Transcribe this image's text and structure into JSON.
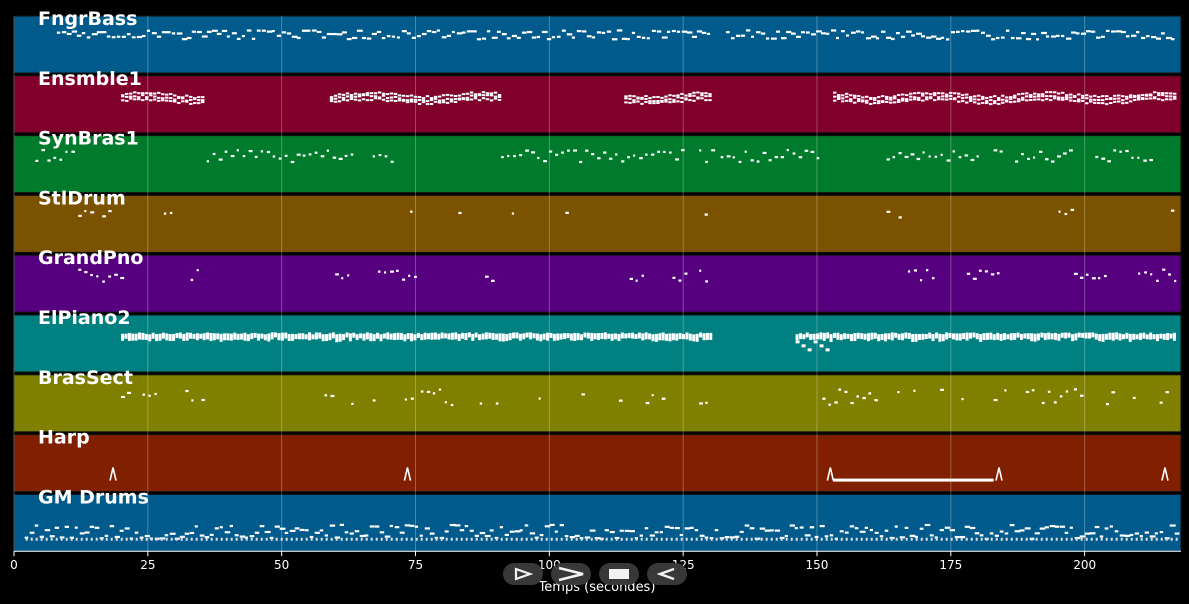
{
  "chart_data": {
    "type": "piano-roll",
    "xlabel": "Temps (secondes)",
    "xlim": [
      0,
      218
    ],
    "xticks": [
      0,
      25,
      50,
      75,
      100,
      125,
      150,
      175,
      200
    ],
    "grid": true,
    "tracks": [
      {
        "name": "FngrBass",
        "color": "#005a8c",
        "segments": [
          [
            8,
            130
          ],
          [
            133,
            217
          ]
        ],
        "style": "dense",
        "rows": 2
      },
      {
        "name": "Ensmble1",
        "color": "#80002b",
        "segments": [
          [
            20,
            35
          ],
          [
            59,
            91
          ],
          [
            114,
            130
          ],
          [
            153,
            217
          ]
        ],
        "style": "chords",
        "rows": 3
      },
      {
        "name": "SynBras1",
        "color": "#007a2b",
        "segments": [
          [
            4,
            11
          ],
          [
            36,
            64
          ],
          [
            67,
            71
          ],
          [
            91,
            125
          ],
          [
            128,
            131
          ],
          [
            132,
            150
          ],
          [
            163,
            180
          ],
          [
            183,
            185
          ],
          [
            187,
            198
          ],
          [
            202,
            213
          ]
        ],
        "style": "scatter",
        "rows": 3
      },
      {
        "name": "StlDrum",
        "color": "#7a5200",
        "segments": [
          [
            12,
            18
          ],
          [
            28,
            31
          ],
          [
            74,
            75
          ],
          [
            83,
            86
          ],
          [
            93,
            94
          ],
          [
            103,
            104
          ],
          [
            129,
            130
          ],
          [
            163,
            166
          ],
          [
            184,
            185
          ],
          [
            194,
            198
          ],
          [
            215,
            217
          ]
        ],
        "style": "sparse",
        "rows": 2
      },
      {
        "name": "GrandPno",
        "color": "#560080",
        "segments": [
          [
            12,
            20
          ],
          [
            33,
            35
          ],
          [
            60,
            63
          ],
          [
            68,
            75
          ],
          [
            88,
            90
          ],
          [
            115,
            118
          ],
          [
            123,
            126
          ],
          [
            128,
            130
          ],
          [
            167,
            172
          ],
          [
            178,
            184
          ],
          [
            198,
            204
          ],
          [
            210,
            217
          ]
        ],
        "style": "scatter",
        "rows": 3
      },
      {
        "name": "ElPiano2",
        "color": "#008080",
        "segments": [
          [
            20,
            130
          ],
          [
            146,
            217
          ]
        ],
        "style": "band",
        "rows": 1
      },
      {
        "name": "BrasSect",
        "color": "#7f7f00",
        "segments": [
          [
            20,
            22
          ],
          [
            24,
            27
          ],
          [
            32,
            34
          ],
          [
            35,
            36
          ],
          [
            58,
            60
          ],
          [
            63,
            64
          ],
          [
            67,
            68
          ],
          [
            73,
            75
          ],
          [
            76,
            82
          ],
          [
            87,
            88
          ],
          [
            90,
            91
          ],
          [
            98,
            99
          ],
          [
            106,
            107
          ],
          [
            113,
            114
          ],
          [
            118,
            120
          ],
          [
            121,
            122
          ],
          [
            128,
            130
          ],
          [
            151,
            154
          ],
          [
            154,
            161
          ],
          [
            165,
            166
          ],
          [
            168,
            169
          ],
          [
            173,
            174
          ],
          [
            177,
            178
          ],
          [
            183,
            184
          ],
          [
            185,
            186
          ],
          [
            189,
            191
          ],
          [
            192,
            197
          ],
          [
            198,
            200
          ],
          [
            204,
            205
          ],
          [
            205,
            206
          ],
          [
            209,
            210
          ],
          [
            214,
            216
          ]
        ],
        "style": "scatter",
        "rows": 4
      },
      {
        "name": "Harp",
        "color": "#802000",
        "segments": [
          [
            18,
            19
          ],
          [
            73,
            74
          ],
          [
            152,
            153
          ],
          [
            153,
            183
          ],
          [
            183,
            185
          ],
          [
            214,
            216
          ]
        ],
        "style": "harp",
        "rows": 1
      },
      {
        "name": "GM Drums",
        "color": "#005a8c",
        "segments": [
          [
            2,
            217
          ]
        ],
        "style": "dense",
        "rows": 3
      }
    ]
  },
  "transport": {
    "buttons": [
      {
        "name": "play",
        "icon": "play-outline-icon"
      },
      {
        "name": "fast-forward",
        "icon": "fast-forward-icon"
      },
      {
        "name": "stop",
        "icon": "stop-icon"
      },
      {
        "name": "rewind",
        "icon": "rewind-icon"
      }
    ]
  }
}
